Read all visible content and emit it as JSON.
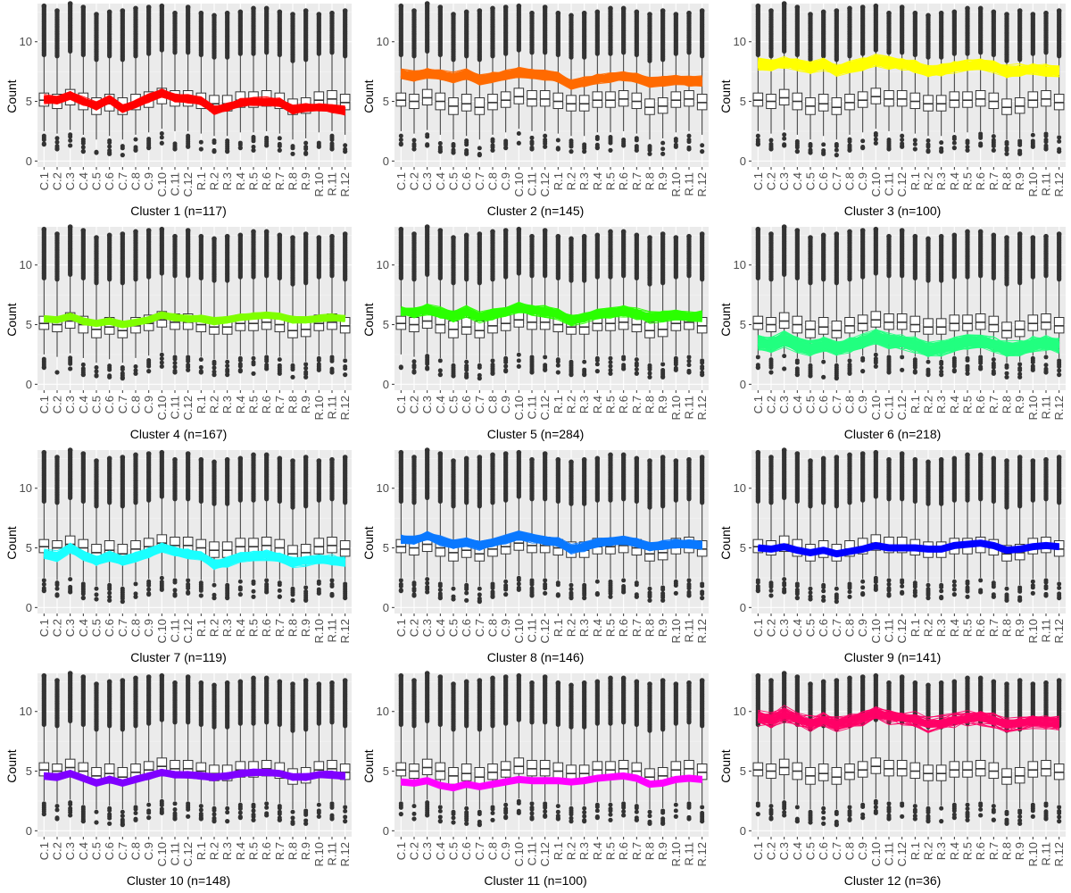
{
  "chart_data": {
    "type": "line",
    "samples": [
      "C.1",
      "C.2",
      "C.3",
      "C.4",
      "C.5",
      "C.6",
      "C.7",
      "C.8",
      "C.9",
      "C.10",
      "C.11",
      "C.12",
      "R.1",
      "R.2",
      "R.3",
      "R.4",
      "R.5",
      "R.6",
      "R.7",
      "R.8",
      "R.9",
      "R.10",
      "R.11",
      "R.12"
    ],
    "ylabel": "Count",
    "y_ticks": [
      "0",
      "5",
      "10"
    ],
    "ylim": [
      -0.5,
      13.2
    ],
    "grid": true,
    "boxplot": {
      "q1": [
        4.6,
        4.4,
        4.7,
        4.3,
        3.9,
        4.2,
        3.9,
        4.3,
        4.5,
        4.8,
        4.6,
        4.6,
        4.4,
        4.2,
        4.2,
        4.5,
        4.5,
        4.6,
        4.4,
        3.9,
        4.0,
        4.5,
        4.6,
        4.3
      ],
      "median": [
        5.1,
        5.0,
        5.3,
        5.0,
        4.6,
        4.8,
        4.5,
        4.9,
        5.1,
        5.4,
        5.2,
        5.2,
        5.0,
        4.8,
        4.8,
        5.1,
        5.1,
        5.2,
        5.0,
        4.5,
        4.6,
        5.1,
        5.2,
        4.9
      ],
      "q3": [
        5.7,
        5.6,
        6.0,
        5.7,
        5.3,
        5.6,
        5.3,
        5.6,
        5.8,
        6.1,
        5.9,
        5.9,
        5.7,
        5.5,
        5.5,
        5.8,
        5.8,
        5.9,
        5.7,
        5.2,
        5.3,
        5.8,
        5.9,
        5.6
      ],
      "whisker_low": [
        2.5,
        2.3,
        2.6,
        2.2,
        1.8,
        2.1,
        1.8,
        2.2,
        2.4,
        2.7,
        2.5,
        2.5,
        2.3,
        2.1,
        2.1,
        2.4,
        2.4,
        2.5,
        2.3,
        1.8,
        1.9,
        2.4,
        2.5,
        2.2
      ],
      "whisker_high": [
        8.9,
        8.8,
        9.2,
        8.9,
        8.5,
        8.8,
        8.5,
        8.8,
        9.0,
        9.3,
        9.1,
        9.1,
        8.9,
        8.7,
        8.7,
        9.0,
        9.0,
        9.1,
        8.9,
        8.4,
        8.5,
        9.0,
        9.1,
        8.8
      ],
      "outliers_high_max": [
        13.0,
        12.6,
        13.2,
        12.9,
        12.3,
        12.5,
        12.6,
        12.8,
        12.9,
        13.0,
        12.4,
        12.9,
        12.4,
        12.2,
        12.4,
        12.5,
        12.8,
        12.8,
        12.5,
        12.3,
        12.6,
        12.3,
        12.4,
        12.6
      ],
      "outliers_low": [
        1.4,
        1.0,
        1.3,
        0.8,
        0.7,
        0.6,
        0.5,
        0.9,
        1.1,
        1.5,
        1.0,
        1.2,
        1.0,
        0.8,
        0.8,
        1.1,
        0.9,
        1.3,
        0.9,
        0.6,
        0.6,
        1.2,
        1.0,
        0.8
      ]
    },
    "clusters": [
      {
        "label": "Cluster 1 (n=117)",
        "color": "#FF0000",
        "n": 117,
        "profile": [
          5.2,
          5.1,
          5.5,
          5.0,
          4.6,
          5.2,
          4.4,
          4.8,
          5.3,
          5.7,
          5.3,
          5.2,
          5.0,
          4.3,
          4.5,
          4.9,
          5.0,
          5.0,
          4.9,
          4.3,
          4.5,
          4.5,
          4.4,
          4.2
        ],
        "spread": 0.45
      },
      {
        "label": "Cluster 2 (n=145)",
        "color": "#FF6A00",
        "n": 145,
        "profile": [
          7.3,
          7.1,
          7.4,
          7.2,
          7.0,
          7.3,
          6.8,
          7.0,
          7.2,
          7.4,
          7.3,
          7.2,
          7.0,
          6.4,
          6.6,
          6.9,
          7.0,
          7.1,
          7.0,
          6.6,
          6.7,
          6.8,
          6.7,
          6.7
        ],
        "spread": 0.5
      },
      {
        "label": "Cluster 3 (n=100)",
        "color": "#FFFF00",
        "n": 100,
        "profile": [
          8.1,
          8.0,
          8.3,
          8.1,
          7.8,
          8.1,
          7.6,
          7.9,
          8.1,
          8.4,
          8.2,
          8.1,
          7.9,
          7.5,
          7.6,
          7.9,
          8.0,
          8.1,
          7.9,
          7.5,
          7.6,
          7.7,
          7.6,
          7.5
        ],
        "spread": 0.6
      },
      {
        "label": "Cluster 4 (n=167)",
        "color": "#80FF00",
        "n": 167,
        "profile": [
          5.5,
          5.4,
          5.7,
          5.3,
          5.1,
          5.3,
          5.0,
          5.2,
          5.4,
          5.8,
          5.6,
          5.5,
          5.5,
          5.3,
          5.4,
          5.6,
          5.7,
          5.8,
          5.7,
          5.4,
          5.4,
          5.5,
          5.6,
          5.5
        ],
        "spread": 0.35
      },
      {
        "label": "Cluster 5 (n=284)",
        "color": "#2AFF00",
        "n": 284,
        "profile": [
          6.1,
          6.0,
          6.3,
          6.0,
          5.7,
          6.1,
          5.6,
          5.9,
          6.1,
          6.4,
          6.2,
          6.1,
          5.9,
          5.4,
          5.6,
          5.9,
          6.0,
          6.1,
          5.9,
          5.6,
          5.7,
          5.8,
          5.7,
          5.7
        ],
        "spread": 0.55
      },
      {
        "label": "Cluster 6 (n=218)",
        "color": "#22FF80",
        "n": 218,
        "profile": [
          3.5,
          3.3,
          3.8,
          3.3,
          3.0,
          3.3,
          3.0,
          3.3,
          3.5,
          4.0,
          3.6,
          3.5,
          3.3,
          2.9,
          3.0,
          3.3,
          3.5,
          3.5,
          3.3,
          2.9,
          3.0,
          3.3,
          3.4,
          3.2
        ],
        "spread": 0.8
      },
      {
        "label": "Cluster 7 (n=119)",
        "color": "#1AFFFF",
        "n": 119,
        "profile": [
          4.5,
          4.3,
          5.0,
          4.4,
          3.9,
          4.3,
          3.9,
          4.2,
          4.6,
          5.0,
          4.7,
          4.5,
          4.3,
          3.6,
          3.8,
          4.2,
          4.3,
          4.4,
          4.2,
          3.8,
          3.9,
          4.0,
          4.0,
          3.8
        ],
        "spread": 0.5
      },
      {
        "label": "Cluster 8 (n=146)",
        "color": "#0A78FF",
        "n": 146,
        "profile": [
          5.7,
          5.6,
          6.0,
          5.6,
          5.3,
          5.5,
          5.2,
          5.4,
          5.7,
          6.0,
          5.8,
          5.6,
          5.5,
          4.9,
          5.1,
          5.4,
          5.5,
          5.6,
          5.4,
          5.1,
          5.2,
          5.3,
          5.3,
          5.2
        ],
        "spread": 0.45
      },
      {
        "label": "Cluster 9 (n=141)",
        "color": "#0000FF",
        "n": 141,
        "profile": [
          5.0,
          4.9,
          5.1,
          4.8,
          4.6,
          4.8,
          4.5,
          4.7,
          4.9,
          5.2,
          5.0,
          5.0,
          5.0,
          4.9,
          4.9,
          5.2,
          5.3,
          5.4,
          5.2,
          4.8,
          4.9,
          5.1,
          5.2,
          5.1
        ],
        "spread": 0.28
      },
      {
        "label": "Cluster 10 (n=148)",
        "color": "#8000FF",
        "n": 148,
        "profile": [
          4.6,
          4.5,
          4.8,
          4.4,
          4.0,
          4.3,
          4.0,
          4.3,
          4.6,
          4.9,
          4.7,
          4.7,
          4.6,
          4.5,
          4.6,
          4.8,
          4.9,
          4.9,
          4.8,
          4.5,
          4.5,
          4.7,
          4.7,
          4.6
        ],
        "spread": 0.35
      },
      {
        "label": "Cluster 11 (n=100)",
        "color": "#FF00FF",
        "n": 100,
        "profile": [
          4.1,
          4.0,
          4.2,
          3.8,
          3.6,
          3.9,
          3.7,
          3.9,
          4.1,
          4.3,
          4.2,
          4.2,
          4.2,
          4.1,
          4.2,
          4.4,
          4.5,
          4.6,
          4.4,
          3.9,
          4.0,
          4.3,
          4.4,
          4.3
        ],
        "spread": 0.28
      },
      {
        "label": "Cluster 12 (n=36)",
        "color": "#FF0066",
        "n": 36,
        "profile": [
          9.5,
          9.3,
          9.8,
          9.4,
          9.0,
          9.3,
          8.9,
          9.2,
          9.5,
          9.9,
          9.6,
          9.5,
          9.3,
          8.9,
          9.0,
          9.3,
          9.4,
          9.5,
          9.3,
          8.9,
          9.0,
          9.2,
          9.1,
          9.0
        ],
        "spread": 0.8
      }
    ]
  }
}
